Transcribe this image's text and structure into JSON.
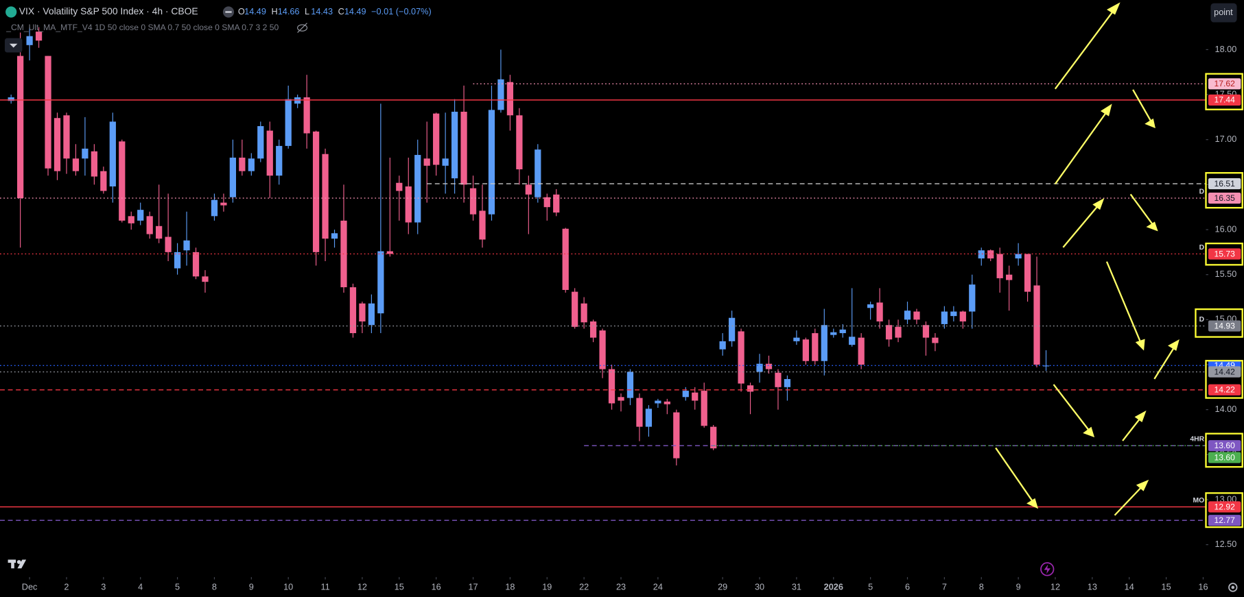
{
  "header": {
    "title": "VIX · Volatility S&P 500 Index · 4h · CBOE",
    "ohlc": [
      {
        "key": "O",
        "value": 14.49
      },
      {
        "key": "H",
        "value": 14.66
      },
      {
        "key": "L",
        "value": 14.43
      },
      {
        "key": "C",
        "value": 14.49
      }
    ],
    "change": "−0.01 (−0.07%)",
    "indicator": "_CM_Ult_MA_MTF_V4 1D 50 close 0 SMA 0.7 50 close 0 SMA 0.7 3 2 50",
    "button": "point"
  },
  "chart_data": {
    "type": "candlestick",
    "up_color": "#5b9cf6",
    "down_color": "#f0608e",
    "grid": false,
    "xlim": [
      -1.2,
      129.3
    ],
    "ylim": [
      12.14,
      18.55
    ],
    "xticks": [
      {
        "value": 2,
        "label": "Dec"
      },
      {
        "value": 6,
        "label": "2"
      },
      {
        "value": 10,
        "label": "3"
      },
      {
        "value": 14,
        "label": "4"
      },
      {
        "value": 18,
        "label": "5"
      },
      {
        "value": 22,
        "label": "8"
      },
      {
        "value": 26,
        "label": "9"
      },
      {
        "value": 30,
        "label": "10"
      },
      {
        "value": 34,
        "label": "11"
      },
      {
        "value": 38,
        "label": "12"
      },
      {
        "value": 42,
        "label": "15"
      },
      {
        "value": 46,
        "label": "16"
      },
      {
        "value": 50,
        "label": "17"
      },
      {
        "value": 54,
        "label": "18"
      },
      {
        "value": 58,
        "label": "19"
      },
      {
        "value": 62,
        "label": "22"
      },
      {
        "value": 66,
        "label": "23"
      },
      {
        "value": 70,
        "label": "24"
      },
      {
        "value": 77,
        "label": "29"
      },
      {
        "value": 81,
        "label": "30"
      },
      {
        "value": 85,
        "label": "31"
      },
      {
        "value": 89,
        "label": "2026"
      },
      {
        "value": 93,
        "label": "5"
      },
      {
        "value": 97,
        "label": "6"
      },
      {
        "value": 101,
        "label": "7"
      },
      {
        "value": 105,
        "label": "8"
      },
      {
        "value": 109,
        "label": "9"
      },
      {
        "value": 113,
        "label": "12"
      },
      {
        "value": 117,
        "label": "13"
      },
      {
        "value": 121,
        "label": "14"
      },
      {
        "value": 125,
        "label": "15"
      },
      {
        "value": 129,
        "label": "16"
      }
    ],
    "yticks": [
      {
        "value": 12.5,
        "label": "12.50"
      },
      {
        "value": 13,
        "label": "13.00"
      },
      {
        "value": 13.5,
        "label": "13.50"
      },
      {
        "value": 14,
        "label": "14.00"
      },
      {
        "value": 14.5,
        "label": "14.50"
      },
      {
        "value": 15,
        "label": "15.00"
      },
      {
        "value": 15.5,
        "label": "15.50"
      },
      {
        "value": 16,
        "label": "16.00"
      },
      {
        "value": 16.5,
        "label": "16.50"
      },
      {
        "value": 17,
        "label": "17.00"
      },
      {
        "value": 17.5,
        "label": "17.50"
      },
      {
        "value": 18,
        "label": "18.00"
      }
    ],
    "open": [
      17.43,
      17.93,
      18.05,
      18.2,
      17.93,
      17.24,
      17.27,
      16.79,
      16.79,
      16.87,
      16.65,
      16.48,
      16.98,
      16.15,
      16.1,
      16.15,
      16.04,
      15.92,
      15.57,
      15.77,
      15.75,
      15.48,
      16.15,
      16.3,
      16.36,
      16.8,
      16.65,
      16.79,
      17.1,
      16.6,
      16.93,
      17.4,
      17.47,
      17.09,
      16.84,
      15.9,
      16.1,
      15.36,
      15.18,
      14.94,
      15.07,
      15.76,
      16.52,
      16.48,
      16.08,
      16.79,
      17.29,
      16.71,
      16.57,
      17.31,
      16.46,
      16.21,
      16.17,
      17.33,
      17.64,
      17.27,
      16.5,
      16.36,
      16.36,
      16.39,
      16.01,
      15.31,
      15.18,
      14.98,
      14.88,
      14.45,
      14.14,
      14.13,
      14.13,
      13.81,
      14.07,
      14.09,
      13.97,
      14.14,
      14.19,
      14.21,
      13.81,
      14.67,
      14.76,
      14.87,
      14.27,
      14.42,
      14.51,
      14.41,
      14.25,
      14.76,
      14.78,
      14.85,
      14.54,
      14.83,
      14.85,
      14.72,
      14.8,
      15.13,
      15.19,
      14.94,
      14.92,
      15.0,
      15.09,
      14.94,
      14.8,
      14.95,
      15.04,
      15.09,
      15.09,
      15.68,
      15.77,
      15.73,
      15.5,
      15.68,
      15.73,
      15.38,
      14.49
    ],
    "high": [
      17.5,
      18.19,
      18.25,
      18.25,
      17.93,
      17.3,
      17.3,
      16.95,
      17.25,
      16.95,
      16.7,
      17.3,
      17.0,
      16.2,
      16.3,
      16.2,
      16.5,
      16.4,
      15.85,
      16.2,
      15.8,
      15.55,
      16.4,
      16.4,
      17.0,
      17.0,
      16.85,
      17.2,
      17.2,
      17.0,
      17.6,
      17.5,
      17.72,
      17.1,
      16.9,
      16.0,
      16.5,
      15.4,
      15.2,
      15.28,
      17.4,
      16.8,
      16.6,
      16.8,
      17.0,
      17.2,
      17.3,
      17.3,
      17.45,
      17.6,
      16.6,
      16.5,
      17.6,
      18.0,
      17.72,
      17.35,
      16.6,
      16.95,
      16.4,
      16.45,
      16.02,
      15.35,
      15.25,
      15.0,
      14.9,
      14.5,
      14.18,
      14.45,
      14.18,
      14.05,
      14.12,
      14.12,
      14.0,
      14.25,
      14.25,
      14.3,
      13.83,
      14.85,
      15.1,
      14.9,
      14.3,
      14.62,
      14.6,
      14.45,
      14.38,
      14.88,
      14.8,
      14.9,
      15.12,
      14.9,
      14.95,
      15.35,
      14.85,
      15.2,
      15.35,
      15.0,
      15.0,
      15.2,
      15.12,
      14.98,
      14.85,
      15.15,
      15.15,
      15.1,
      15.5,
      15.8,
      15.78,
      15.8,
      15.6,
      15.85,
      15.73,
      15.7,
      14.66
    ],
    "low": [
      17.4,
      15.8,
      17.88,
      18.02,
      16.6,
      16.55,
      16.62,
      16.6,
      16.6,
      16.5,
      16.4,
      16.3,
      16.08,
      16.0,
      16.05,
      15.9,
      15.85,
      15.65,
      15.5,
      15.6,
      15.45,
      15.3,
      16.1,
      16.2,
      16.3,
      16.6,
      16.6,
      16.75,
      16.35,
      16.5,
      16.9,
      17.35,
      16.9,
      15.6,
      15.65,
      15.8,
      15.3,
      14.8,
      14.85,
      14.85,
      14.85,
      15.7,
      16.1,
      15.95,
      15.95,
      16.3,
      16.6,
      16.4,
      16.4,
      16.3,
      16.1,
      15.8,
      16.1,
      17.3,
      17.1,
      16.5,
      15.95,
      16.3,
      16.1,
      16.15,
      15.3,
      14.9,
      14.9,
      14.75,
      14.35,
      14.0,
      13.98,
      14.05,
      13.65,
      13.7,
      14.02,
      13.95,
      13.38,
      14.1,
      14.0,
      13.8,
      13.55,
      14.6,
      14.7,
      14.2,
      13.95,
      14.3,
      14.4,
      14.0,
      14.1,
      14.72,
      14.5,
      14.5,
      14.38,
      14.8,
      14.8,
      14.7,
      14.45,
      15.0,
      14.9,
      14.7,
      14.75,
      14.95,
      14.95,
      14.6,
      14.65,
      14.9,
      14.98,
      14.9,
      14.9,
      15.6,
      15.65,
      15.3,
      15.1,
      15.6,
      15.2,
      14.47,
      14.43
    ],
    "close": [
      17.47,
      16.35,
      18.15,
      18.1,
      16.68,
      16.65,
      16.79,
      16.65,
      16.9,
      16.59,
      16.43,
      17.2,
      16.1,
      16.07,
      16.22,
      15.95,
      15.9,
      15.75,
      15.75,
      15.88,
      15.48,
      15.42,
      16.33,
      16.27,
      16.8,
      16.65,
      16.79,
      17.15,
      16.6,
      16.93,
      17.45,
      17.47,
      17.07,
      15.75,
      15.9,
      15.96,
      15.36,
      14.85,
      14.98,
      15.18,
      15.76,
      15.73,
      16.43,
      16.08,
      16.83,
      16.71,
      16.72,
      16.79,
      17.31,
      16.5,
      16.17,
      15.89,
      17.33,
      17.67,
      17.27,
      16.67,
      16.39,
      16.89,
      16.25,
      16.19,
      15.33,
      14.92,
      14.97,
      14.8,
      14.45,
      14.07,
      14.1,
      14.42,
      13.81,
      14.01,
      14.1,
      14.06,
      13.46,
      14.21,
      14.1,
      13.82,
      13.57,
      14.76,
      15.02,
      14.29,
      14.2,
      14.51,
      14.45,
      14.25,
      14.34,
      14.8,
      14.54,
      14.54,
      14.94,
      14.86,
      14.89,
      14.81,
      14.5,
      15.17,
      14.98,
      14.78,
      14.8,
      15.1,
      15.0,
      14.8,
      14.74,
      15.09,
      15.09,
      14.98,
      15.39,
      15.77,
      15.68,
      15.46,
      15.44,
      15.73,
      15.31,
      14.5,
      14.49
    ],
    "levels": [
      {
        "value": 17.62,
        "color": "#f48fb1",
        "style": "dotted",
        "start": 50,
        "box": "#f8bbd0",
        "text_color": "#b71c1c"
      },
      {
        "value": 17.44,
        "color": "#f23645",
        "style": "solid",
        "box": "#f23645",
        "text_color": "#ffffff"
      },
      {
        "value": 16.51,
        "color": "#c8c8c8",
        "style": "dashed",
        "start": 45,
        "box": "#d1d4dc",
        "text_color": "#131722"
      },
      {
        "value": 16.35,
        "color": "#f48fb1",
        "style": "dotted",
        "tag": "D",
        "box": "#f48fb1",
        "text_color": "#131722"
      },
      {
        "value": 15.73,
        "color": "#f23645",
        "style": "dotted",
        "tag": "D",
        "box": "#f23645",
        "text_color": "#ffffff"
      },
      {
        "value": 14.93,
        "color": "#9598a1",
        "style": "dotted",
        "tag": "D",
        "box": "#787b86",
        "text_color": "#ffffff"
      },
      {
        "value": 14.49,
        "color": "#2962ff",
        "style": "dotted",
        "box": "#2962ff",
        "text_color": "#ffffff"
      },
      {
        "value": 14.42,
        "color": "#9598a1",
        "style": "dotted",
        "box": "#9598a1",
        "text_color": "#131722"
      },
      {
        "value": 14.22,
        "color": "#f23645",
        "style": "dashed",
        "box": "#f23645",
        "text_color": "#ffffff"
      },
      {
        "value": 13.6,
        "label": "13.60",
        "color": "#7e57c2",
        "style": "dashed",
        "start": 62,
        "tag": "4HR",
        "box": "#7e57c2",
        "text_color": "#ffffff"
      },
      {
        "value": 13.6,
        "label": "13.60",
        "color": "#4caf50",
        "style": "dotted",
        "start": 76,
        "box": "#4caf50",
        "text_color": "#ffffff"
      },
      {
        "value": 12.92,
        "color": "#f23645",
        "style": "solid",
        "tag": "MO",
        "box": "#f23645",
        "text_color": "#ffffff"
      },
      {
        "value": 12.77,
        "color": "#7e57c2",
        "style": "dashed",
        "box": "#7e57c2",
        "text_color": "#ffffff"
      }
    ]
  }
}
